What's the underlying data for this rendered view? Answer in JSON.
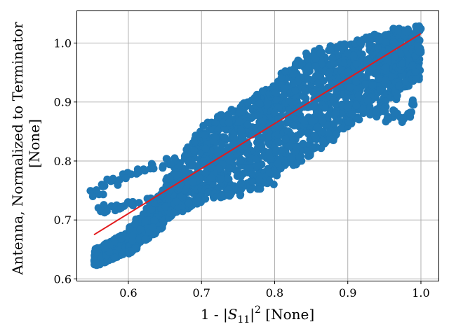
{
  "chart_data": {
    "type": "scatter",
    "xlabel_prefix": "1 - |",
    "xlabel_symbol": "S",
    "xlabel_subscript": "11",
    "xlabel_close": "|",
    "xlabel_superscript": "2",
    "xlabel_units": " [None]",
    "ylabel_lines": [
      "Antenna, Normalized to Terminator",
      "[None]"
    ],
    "xlim": [
      0.53,
      1.024
    ],
    "ylim": [
      0.597,
      1.054
    ],
    "xticks": [
      0.6,
      0.7,
      0.8,
      0.9,
      1.0
    ],
    "xtick_labels": [
      "0.6",
      "0.7",
      "0.8",
      "0.9",
      "1.0"
    ],
    "yticks": [
      0.6,
      0.7,
      0.8,
      0.9,
      1.0
    ],
    "ytick_labels": [
      "0.6",
      "0.7",
      "0.8",
      "0.9",
      "1.0"
    ],
    "grid": true,
    "colors": {
      "points": "#1f77b4",
      "fit_line": "#e31a1c"
    },
    "fit_line": {
      "x": [
        0.553,
        1.0
      ],
      "y": [
        0.675,
        1.016
      ]
    },
    "band_series": [
      {
        "x0": 0.553,
        "x1": 0.6,
        "lo0": 0.62,
        "hi0": 0.65,
        "lo1": 0.645,
        "hi1": 0.68
      },
      {
        "x0": 0.6,
        "x1": 0.65,
        "lo0": 0.64,
        "hi0": 0.69,
        "lo1": 0.69,
        "hi1": 0.75
      },
      {
        "x0": 0.65,
        "x1": 0.7,
        "lo0": 0.7,
        "hi0": 0.77,
        "lo1": 0.73,
        "hi1": 0.86
      },
      {
        "x0": 0.7,
        "x1": 0.75,
        "lo0": 0.735,
        "hi0": 0.86,
        "lo1": 0.74,
        "hi1": 0.895
      },
      {
        "x0": 0.75,
        "x1": 0.8,
        "lo0": 0.74,
        "hi0": 0.895,
        "lo1": 0.76,
        "hi1": 0.93
      },
      {
        "x0": 0.8,
        "x1": 0.85,
        "lo0": 0.77,
        "hi0": 0.94,
        "lo1": 0.81,
        "hi1": 0.99
      },
      {
        "x0": 0.85,
        "x1": 0.9,
        "lo0": 0.81,
        "hi0": 0.99,
        "lo1": 0.85,
        "hi1": 1.0
      },
      {
        "x0": 0.9,
        "x1": 0.95,
        "lo0": 0.86,
        "hi0": 1.0,
        "lo1": 0.89,
        "hi1": 1.02
      },
      {
        "x0": 0.95,
        "x1": 1.0,
        "lo0": 0.9,
        "hi0": 1.025,
        "lo1": 0.94,
        "hi1": 1.03
      }
    ],
    "upper_arm": [
      {
        "x": 0.557,
        "y": 0.745
      },
      {
        "x": 0.565,
        "y": 0.755
      },
      {
        "x": 0.58,
        "y": 0.765
      },
      {
        "x": 0.6,
        "y": 0.775
      },
      {
        "x": 0.62,
        "y": 0.78
      },
      {
        "x": 0.64,
        "y": 0.79
      },
      {
        "x": 0.66,
        "y": 0.8
      },
      {
        "x": 0.56,
        "y": 0.715
      },
      {
        "x": 0.575,
        "y": 0.72
      },
      {
        "x": 0.59,
        "y": 0.725
      },
      {
        "x": 0.61,
        "y": 0.73
      },
      {
        "x": 0.63,
        "y": 0.735
      },
      {
        "x": 0.65,
        "y": 0.745
      },
      {
        "x": 0.67,
        "y": 0.755
      }
    ],
    "right_loops": [
      {
        "x": 0.965,
        "y": 0.91
      },
      {
        "x": 0.968,
        "y": 0.93
      },
      {
        "x": 0.972,
        "y": 0.95
      },
      {
        "x": 0.975,
        "y": 0.96
      },
      {
        "x": 0.965,
        "y": 0.88
      },
      {
        "x": 0.975,
        "y": 0.87
      },
      {
        "x": 0.985,
        "y": 0.88
      },
      {
        "x": 0.99,
        "y": 0.9
      },
      {
        "x": 0.94,
        "y": 0.88
      },
      {
        "x": 0.945,
        "y": 0.895
      },
      {
        "x": 0.95,
        "y": 0.89
      },
      {
        "x": 0.955,
        "y": 0.87
      }
    ]
  }
}
